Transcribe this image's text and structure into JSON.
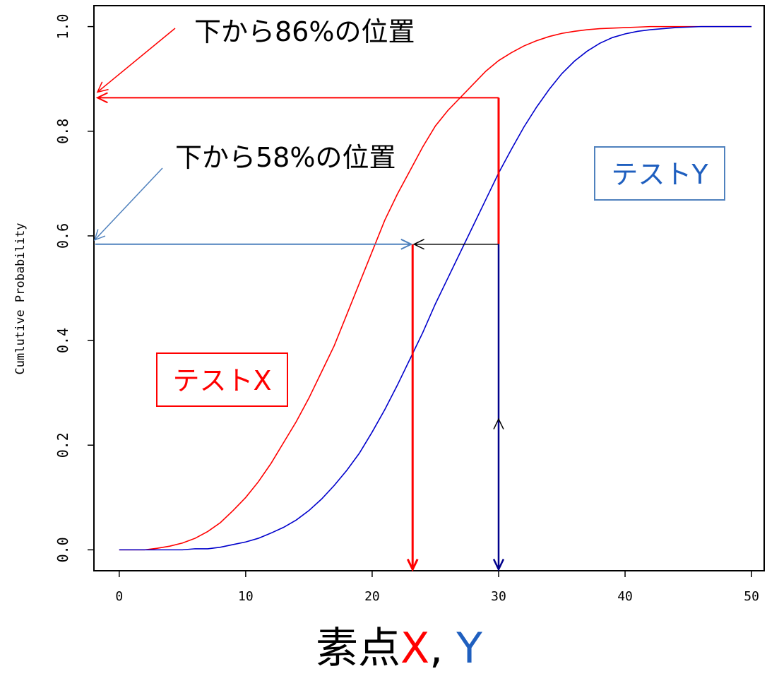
{
  "chart_data": {
    "type": "line",
    "title": "",
    "xlabel_parts": [
      {
        "text": "素点",
        "color": "#000000"
      },
      {
        "text": "X",
        "color": "#ff0000"
      },
      {
        "text": ", ",
        "color": "#000000"
      },
      {
        "text": "Y",
        "color": "#1f5fbf"
      }
    ],
    "ylabel": "Cumlutive Probability",
    "xlim": [
      -2,
      51
    ],
    "ylim": [
      -0.04,
      1.04
    ],
    "x_ticks": [
      0,
      10,
      20,
      30,
      40,
      50
    ],
    "y_ticks": [
      0.0,
      0.2,
      0.4,
      0.6,
      0.8,
      1.0
    ],
    "y_tick_labels": [
      "0.0",
      "0.2",
      "0.4",
      "0.6",
      "0.8",
      "1.0"
    ],
    "grid": false,
    "series": [
      {
        "name": "テストX",
        "color": "#ff0000",
        "x": [
          0,
          1,
          2,
          3,
          4,
          5,
          6,
          7,
          8,
          9,
          10,
          11,
          12,
          13,
          14,
          15,
          16,
          17,
          18,
          19,
          20,
          21,
          22,
          23,
          24,
          25,
          26,
          27,
          28,
          29,
          30,
          31,
          32,
          33,
          34,
          35,
          36,
          37,
          38,
          39,
          40,
          41,
          42,
          43,
          44,
          45,
          46,
          47,
          48,
          49,
          50
        ],
        "y": [
          0.0,
          0.0,
          0.0,
          0.003,
          0.007,
          0.013,
          0.022,
          0.035,
          0.052,
          0.075,
          0.1,
          0.13,
          0.165,
          0.205,
          0.245,
          0.29,
          0.34,
          0.39,
          0.45,
          0.51,
          0.57,
          0.63,
          0.68,
          0.725,
          0.77,
          0.81,
          0.84,
          0.865,
          0.89,
          0.915,
          0.935,
          0.95,
          0.963,
          0.973,
          0.981,
          0.987,
          0.991,
          0.994,
          0.996,
          0.997,
          0.998,
          0.999,
          1.0,
          1.0,
          1.0,
          1.0,
          1.0,
          1.0,
          1.0,
          1.0,
          1.0
        ]
      },
      {
        "name": "テストY",
        "color": "#0000cc",
        "x": [
          0,
          1,
          2,
          3,
          4,
          5,
          6,
          7,
          8,
          9,
          10,
          11,
          12,
          13,
          14,
          15,
          16,
          17,
          18,
          19,
          20,
          21,
          22,
          23,
          24,
          25,
          26,
          27,
          28,
          29,
          30,
          31,
          32,
          33,
          34,
          35,
          36,
          37,
          38,
          39,
          40,
          41,
          42,
          43,
          44,
          45,
          46,
          47,
          48,
          49,
          50
        ],
        "y": [
          0.0,
          0.0,
          0.0,
          0.0,
          0.0,
          0.0,
          0.002,
          0.002,
          0.005,
          0.01,
          0.015,
          0.022,
          0.032,
          0.043,
          0.057,
          0.075,
          0.097,
          0.123,
          0.152,
          0.185,
          0.225,
          0.268,
          0.315,
          0.365,
          0.415,
          0.47,
          0.52,
          0.57,
          0.62,
          0.67,
          0.72,
          0.765,
          0.808,
          0.846,
          0.88,
          0.91,
          0.934,
          0.953,
          0.968,
          0.979,
          0.986,
          0.991,
          0.994,
          0.996,
          0.998,
          0.999,
          1.0,
          1.0,
          1.0,
          1.0,
          1.0
        ]
      }
    ],
    "annotations": [
      {
        "text": "下から86%の位置",
        "color": "#000000"
      },
      {
        "text": "下から58%の位置",
        "color": "#000000"
      }
    ],
    "boxed_labels": [
      {
        "text": "テストX",
        "color": "#ff0000",
        "border": "#ff0000"
      },
      {
        "text": "テストY",
        "color": "#1f5fbf",
        "border": "#4f81bd"
      }
    ],
    "markers": {
      "x_point_a": 23.2,
      "x_point_b": 30,
      "level_high": 0.864,
      "level_mid": 0.584,
      "colors": {
        "red": "#ff0000",
        "blue": "#4f81bd",
        "navy": "#00008b",
        "black": "#000000"
      }
    }
  }
}
